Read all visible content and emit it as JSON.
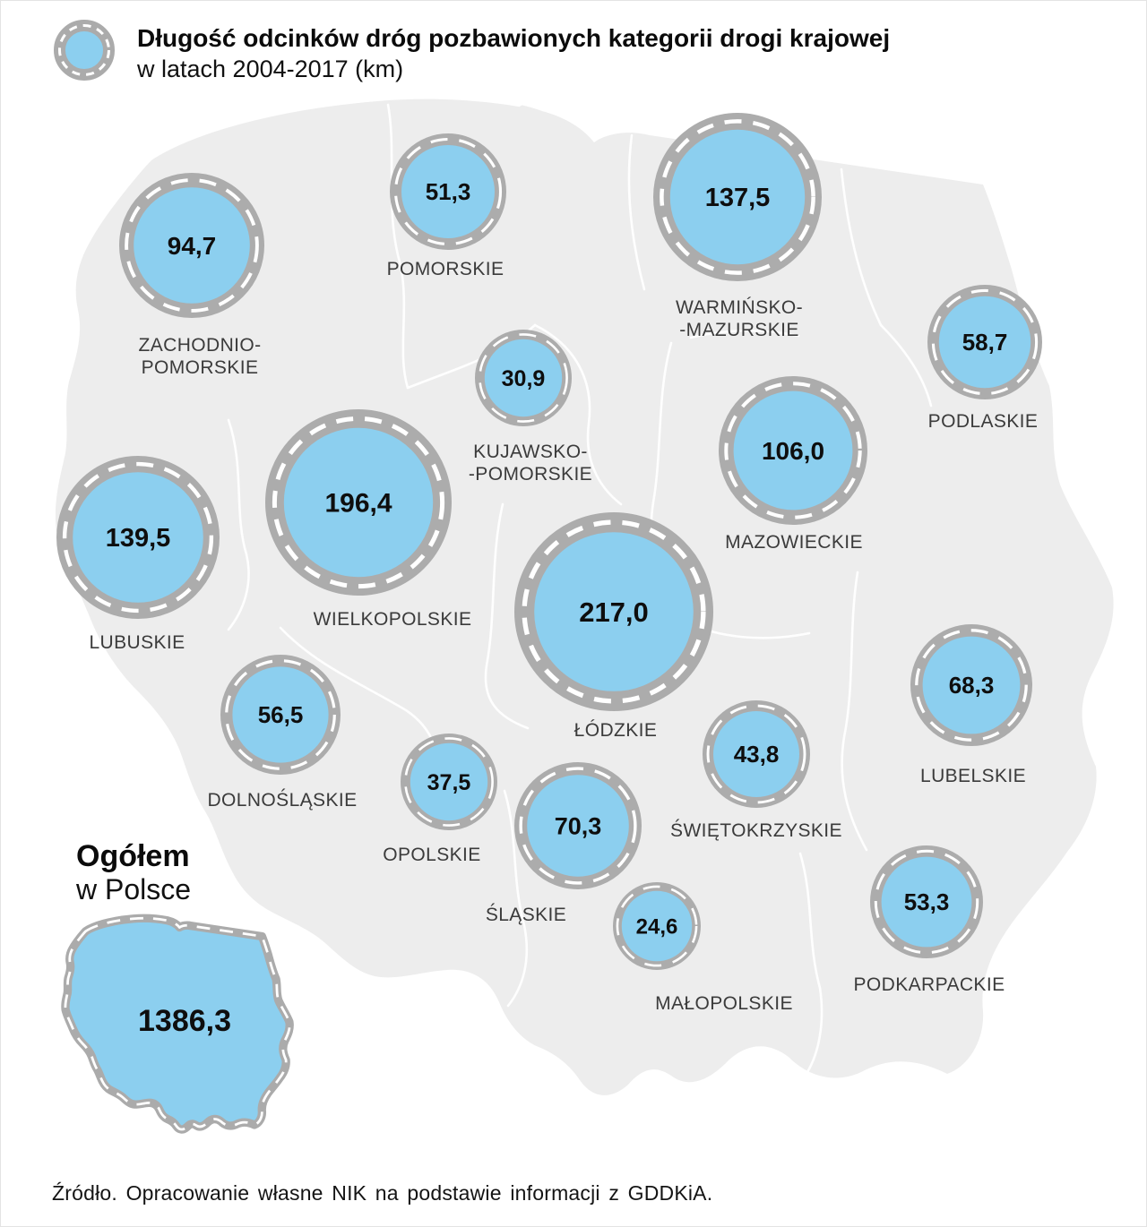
{
  "header": {
    "title_line1": "Długość odcinków dróg pozbawionych kategorii drogi krajowej",
    "title_line2": "w latach 2004-2017 (km)",
    "legend_icon": "road-ring-icon"
  },
  "chart_data": {
    "type": "map-bubbles",
    "title": "Długość odcinków dróg pozbawionych kategorii drogi krajowej",
    "subtitle": "w latach 2004-2017 (km)",
    "unit": "km",
    "map": "Polska (województwa)",
    "legend_position": "top-left",
    "regions": [
      {
        "id": "zachodniopomorskie",
        "label_lines": [
          "ZACHODNIO-",
          "POMORSKIE"
        ],
        "value": "94,7"
      },
      {
        "id": "pomorskie",
        "label_lines": [
          "POMORSKIE"
        ],
        "value": "51,3"
      },
      {
        "id": "warminsko_mazurskie",
        "label_lines": [
          "WARMIŃSKO-",
          "-MAZURSKIE"
        ],
        "value": "137,5"
      },
      {
        "id": "podlaskie",
        "label_lines": [
          "PODLASKIE"
        ],
        "value": "58,7"
      },
      {
        "id": "kujawsko_pomorskie",
        "label_lines": [
          "KUJAWSKO-",
          "-POMORSKIE"
        ],
        "value": "30,9"
      },
      {
        "id": "mazowieckie",
        "label_lines": [
          "MAZOWIECKIE"
        ],
        "value": "106,0"
      },
      {
        "id": "wielkopolskie",
        "label_lines": [
          "WIELKOPOLSKIE"
        ],
        "value": "196,4"
      },
      {
        "id": "lubuskie",
        "label_lines": [
          "LUBUSKIE"
        ],
        "value": "139,5"
      },
      {
        "id": "lodzkie",
        "label_lines": [
          "ŁÓDZKIE"
        ],
        "value": "217,0"
      },
      {
        "id": "lubelskie",
        "label_lines": [
          "LUBELSKIE"
        ],
        "value": "68,3"
      },
      {
        "id": "dolnoslaskie",
        "label_lines": [
          "DOLNOŚLĄSKIE"
        ],
        "value": "56,5"
      },
      {
        "id": "swietokrzyskie",
        "label_lines": [
          "ŚWIĘTOKRZYSKIE"
        ],
        "value": "43,8"
      },
      {
        "id": "opolskie",
        "label_lines": [
          "OPOLSKIE"
        ],
        "value": "37,5"
      },
      {
        "id": "slaskie",
        "label_lines": [
          "ŚLĄSKIE"
        ],
        "value": "70,3"
      },
      {
        "id": "podkarpackie",
        "label_lines": [
          "PODKARPACKIE"
        ],
        "value": "53,3"
      },
      {
        "id": "malopolskie",
        "label_lines": [
          "MAŁOPOLSKIE"
        ],
        "value": "24,6"
      }
    ],
    "total": {
      "label_line1": "Ogółem",
      "label_line2": "w Polsce",
      "value": "1386,3"
    }
  },
  "colors": {
    "bubble_fill": "#8CCFEF",
    "ring_gray": "#ACACAC",
    "dash_white": "#FFFFFF",
    "map_fill": "#EDEDED",
    "map_border": "#FFFFFF"
  },
  "source": "Źródło. Opracowanie  własne NIK na podstawie  informacji  z GDDKiA."
}
